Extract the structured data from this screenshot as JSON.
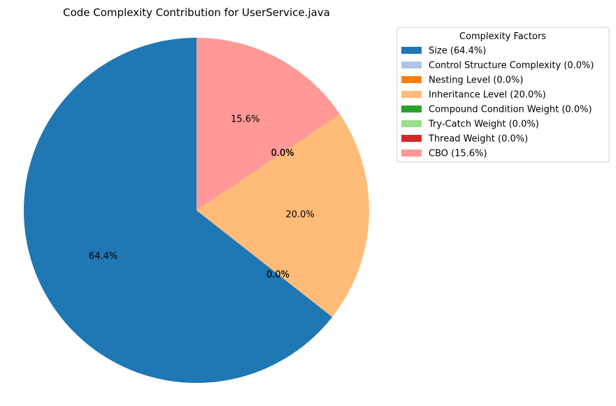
{
  "chart_data": {
    "type": "pie",
    "title": "Code Complexity Contribution for UserService.java",
    "legend_title": "Complexity Factors",
    "legend_position": "right",
    "slices": [
      {
        "label": "Size",
        "value": 64.4,
        "pct_label": "64.4%",
        "legend_label": "Size (64.4%)",
        "color": "#1f77b4"
      },
      {
        "label": "Control Structure Complexity",
        "value": 0.0,
        "pct_label": "0.0%",
        "legend_label": "Control Structure Complexity (0.0%)",
        "color": "#aec7e8"
      },
      {
        "label": "Nesting Level",
        "value": 0.0,
        "pct_label": "0.0%",
        "legend_label": "Nesting Level (0.0%)",
        "color": "#ff7f0e"
      },
      {
        "label": "Inheritance Level",
        "value": 20.0,
        "pct_label": "20.0%",
        "legend_label": "Inheritance Level (20.0%)",
        "color": "#ffbb78"
      },
      {
        "label": "Compound Condition Weight",
        "value": 0.0,
        "pct_label": "0.0%",
        "legend_label": "Compound Condition Weight (0.0%)",
        "color": "#2ca02c"
      },
      {
        "label": "Try-Catch Weight",
        "value": 0.0,
        "pct_label": "0.0%",
        "legend_label": "Try-Catch Weight (0.0%)",
        "color": "#98df8a"
      },
      {
        "label": "Thread Weight",
        "value": 0.0,
        "pct_label": "0.0%",
        "legend_label": "Thread Weight (0.0%)",
        "color": "#d62728"
      },
      {
        "label": "CBO",
        "value": 15.6,
        "pct_label": "15.6%",
        "legend_label": "CBO (15.6%)",
        "color": "#ff9896"
      }
    ]
  }
}
